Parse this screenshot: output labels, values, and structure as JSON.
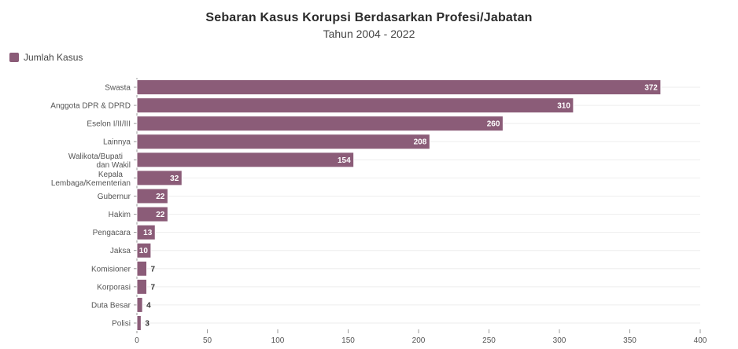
{
  "chart_data": {
    "type": "bar",
    "orientation": "horizontal",
    "title": "Sebaran Kasus Korupsi Berdasarkan Profesi/Jabatan",
    "subtitle": "Tahun 2004 - 2022",
    "categories": [
      "Swasta",
      "Anggota DPR & DPRD",
      "Eselon I/II/III",
      "Lainnya",
      "Walikota/Bupati dan Wakil",
      "Kepala Lembaga/Kementerian",
      "Gubernur",
      "Hakim",
      "Pengacara",
      "Jaksa",
      "Komisioner",
      "Korporasi",
      "Duta Besar",
      "Polisi"
    ],
    "series": [
      {
        "name": "Jumlah Kasus",
        "values": [
          372,
          310,
          260,
          208,
          154,
          32,
          22,
          22,
          13,
          10,
          7,
          7,
          4,
          3
        ]
      }
    ],
    "xlim": [
      0,
      400
    ],
    "xticks": [
      0,
      50,
      100,
      150,
      200,
      250,
      300,
      350,
      400
    ],
    "legend_position": "top-left",
    "grid": true
  },
  "colors": {
    "bar": "#8b5c78",
    "bar_stroke": "#ffffff",
    "value_label_inside": "#ffffff",
    "value_label_outside": "#333333"
  }
}
